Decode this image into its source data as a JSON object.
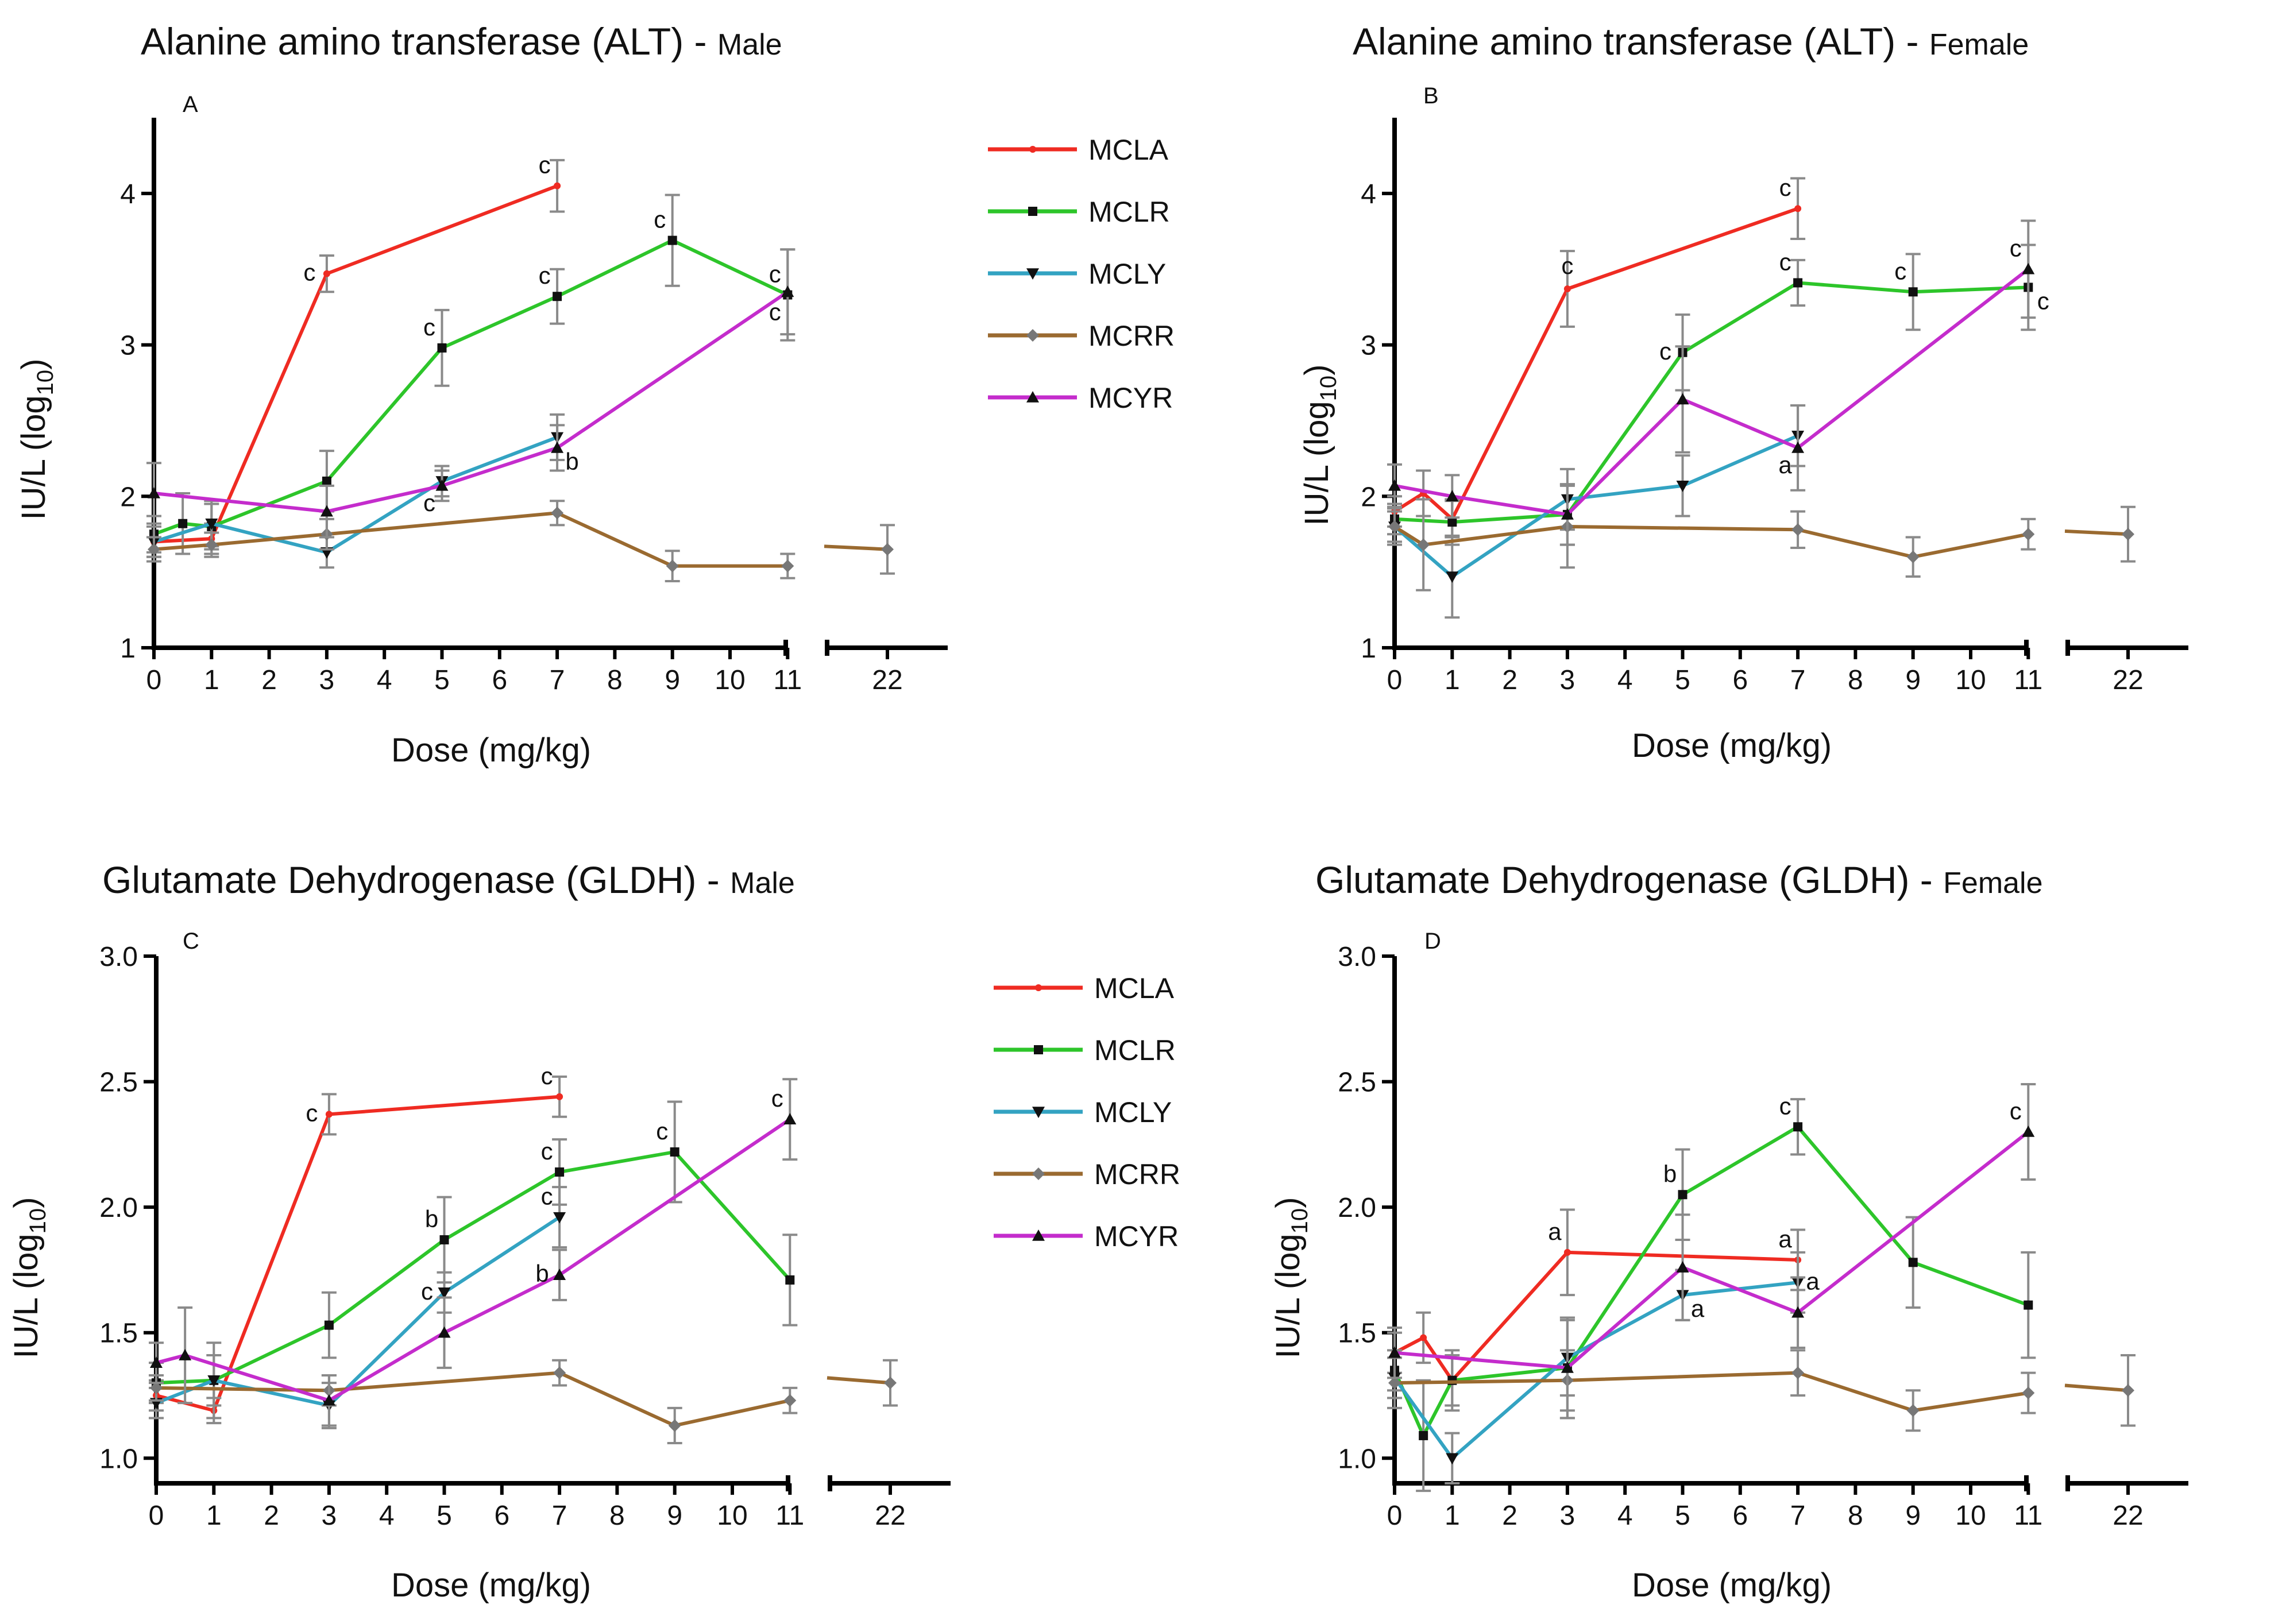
{
  "legend": [
    {
      "name": "MCLA",
      "color": "#ef2b22",
      "marker": "circle"
    },
    {
      "name": "MCLR",
      "color": "#2dc52a",
      "marker": "square"
    },
    {
      "name": "MCLY",
      "color": "#33a3c2",
      "marker": "tri-down"
    },
    {
      "name": "MCRR",
      "color": "#9a6a30",
      "marker": "diamond"
    },
    {
      "name": "MCYR",
      "color": "#c42ccc",
      "marker": "tri-up"
    }
  ],
  "error_bar_color": "#8a8a8a",
  "chart_data": [
    {
      "type": "line",
      "panel": "A",
      "title": "Alanine amino transferase (ALT) -",
      "title_suffix": "Male",
      "xlabel": "Dose (mg/kg)",
      "ylabel_main": "IU/L (log",
      "ylabel_sub": "10",
      "ylabel_end": ")",
      "ylim": [
        1,
        4.5
      ],
      "yticks": [
        "1",
        "2",
        "3",
        "4"
      ],
      "xticks": [
        "0",
        "1",
        "2",
        "3",
        "4",
        "5",
        "6",
        "7",
        "8",
        "9",
        "10",
        "11",
        "22"
      ],
      "series": [
        {
          "name": "MCLA",
          "points": [
            [
              0,
              1.7,
              0.1
            ],
            [
              1,
              1.72,
              0.1
            ],
            [
              3,
              3.47,
              0.12
            ],
            [
              7,
              4.05,
              0.17
            ]
          ]
        },
        {
          "name": "MCLR",
          "points": [
            [
              0,
              1.75,
              0.12
            ],
            [
              0.5,
              1.82,
              0.2
            ],
            [
              1,
              1.8,
              0.15
            ],
            [
              3,
              2.1,
              0.2
            ],
            [
              5,
              2.98,
              0.25
            ],
            [
              7,
              3.32,
              0.18
            ],
            [
              9,
              3.69,
              0.3
            ],
            [
              11,
              3.33,
              0.3
            ]
          ]
        },
        {
          "name": "MCLY",
          "points": [
            [
              0,
              1.7,
              0.1
            ],
            [
              1,
              1.82,
              0.15
            ],
            [
              3,
              1.63,
              0.1
            ],
            [
              5,
              2.1,
              0.1
            ],
            [
              7,
              2.39,
              0.15
            ]
          ]
        },
        {
          "name": "MCRR",
          "points": [
            [
              0,
              1.65,
              0.08
            ],
            [
              1,
              1.68,
              0.08
            ],
            [
              3,
              1.75,
              0.1
            ],
            [
              7,
              1.89,
              0.08
            ],
            [
              9,
              1.54,
              0.1
            ],
            [
              11,
              1.54,
              0.08
            ],
            [
              22,
              1.65,
              0.16
            ]
          ]
        },
        {
          "name": "MCYR",
          "points": [
            [
              0,
              2.02,
              0.2
            ],
            [
              3,
              1.9,
              0.17
            ],
            [
              5,
              2.07,
              0.1
            ],
            [
              7,
              2.32,
              0.15
            ],
            [
              11,
              3.35,
              0.28
            ]
          ]
        }
      ],
      "annotations": [
        {
          "text": "c",
          "x": 3,
          "y": 3.47,
          "pos": "left"
        },
        {
          "text": "c",
          "x": 7,
          "y": 4.05,
          "pos": "above-left"
        },
        {
          "text": "c",
          "x": 5,
          "y": 2.98,
          "pos": "above-left"
        },
        {
          "text": "c",
          "x": 7,
          "y": 3.32,
          "pos": "above-left"
        },
        {
          "text": "c",
          "x": 9,
          "y": 3.69,
          "pos": "above-left"
        },
        {
          "text": "c",
          "x": 11,
          "y": 3.33,
          "pos": "above-left"
        },
        {
          "text": "c",
          "x": 11,
          "y": 3.33,
          "pos": "below-left"
        },
        {
          "text": "c",
          "x": 5,
          "y": 2.07,
          "pos": "below-left"
        },
        {
          "text": "b",
          "x": 7,
          "y": 2.32,
          "pos": "below-right"
        }
      ]
    },
    {
      "type": "line",
      "panel": "B",
      "title": "Alanine amino transferase (ALT) -",
      "title_suffix": "Female",
      "xlabel": "Dose (mg/kg)",
      "ylabel_main": "IU/L (log",
      "ylabel_sub": "10",
      "ylabel_end": ")",
      "ylim": [
        1,
        4.5
      ],
      "yticks": [
        "1",
        "2",
        "3",
        "4"
      ],
      "xticks": [
        "0",
        "1",
        "2",
        "3",
        "4",
        "5",
        "6",
        "7",
        "8",
        "9",
        "10",
        "11",
        "22"
      ],
      "series": [
        {
          "name": "MCLA",
          "points": [
            [
              0,
              1.9,
              0.1
            ],
            [
              0.5,
              2.02,
              0.15
            ],
            [
              1,
              1.85,
              0.12
            ],
            [
              3,
              3.37,
              0.25
            ],
            [
              7,
              3.9,
              0.2
            ]
          ]
        },
        {
          "name": "MCLR",
          "points": [
            [
              0,
              1.85,
              0.1
            ],
            [
              1,
              1.83,
              0.15
            ],
            [
              3,
              1.88,
              0.2
            ],
            [
              5,
              2.95,
              0.25
            ],
            [
              7,
              3.41,
              0.15
            ],
            [
              9,
              3.35,
              0.25
            ],
            [
              11,
              3.38,
              0.28
            ]
          ]
        },
        {
          "name": "MCLY",
          "points": [
            [
              0,
              1.8,
              0.1
            ],
            [
              1,
              1.47,
              0.27
            ],
            [
              3,
              1.98,
              0.2
            ],
            [
              5,
              2.07,
              0.2
            ],
            [
              7,
              2.4,
              0.2
            ]
          ]
        },
        {
          "name": "MCRR",
          "points": [
            [
              0,
              1.8,
              0.12
            ],
            [
              0.5,
              1.68,
              0.3
            ],
            [
              3,
              1.8,
              0.27
            ],
            [
              7,
              1.78,
              0.12
            ],
            [
              9,
              1.6,
              0.13
            ],
            [
              11,
              1.75,
              0.1
            ],
            [
              22,
              1.75,
              0.18
            ]
          ]
        },
        {
          "name": "MCYR",
          "points": [
            [
              0,
              2.07,
              0.14
            ],
            [
              1,
              2.0,
              0.14
            ],
            [
              3,
              1.88,
              0.2
            ],
            [
              5,
              2.64,
              0.35
            ],
            [
              7,
              2.32,
              0.28
            ],
            [
              11,
              3.5,
              0.32
            ]
          ]
        }
      ],
      "annotations": [
        {
          "text": "c",
          "x": 3,
          "y": 3.37,
          "pos": "above"
        },
        {
          "text": "c",
          "x": 7,
          "y": 3.9,
          "pos": "above-left"
        },
        {
          "text": "c",
          "x": 5,
          "y": 2.95,
          "pos": "left"
        },
        {
          "text": "c",
          "x": 7,
          "y": 3.41,
          "pos": "above-left"
        },
        {
          "text": "c",
          "x": 9,
          "y": 3.35,
          "pos": "above-left"
        },
        {
          "text": "c",
          "x": 11,
          "y": 3.5,
          "pos": "above-left"
        },
        {
          "text": "c",
          "x": 11,
          "y": 3.38,
          "pos": "below-right"
        },
        {
          "text": "a",
          "x": 7,
          "y": 2.32,
          "pos": "below-left"
        }
      ]
    },
    {
      "type": "line",
      "panel": "C",
      "title": "Glutamate Dehydrogenase (GLDH) -",
      "title_suffix": "Male",
      "xlabel": "Dose (mg/kg)",
      "ylabel_main": "IU/L (log",
      "ylabel_sub": "10",
      "ylabel_end": ")",
      "ylim": [
        0.9,
        3.0
      ],
      "yticks": [
        "1.0",
        "1.5",
        "2.0",
        "2.5",
        "3.0"
      ],
      "xticks": [
        "0",
        "1",
        "2",
        "3",
        "4",
        "5",
        "6",
        "7",
        "8",
        "9",
        "10",
        "11",
        "22"
      ],
      "series": [
        {
          "name": "MCLA",
          "points": [
            [
              0,
              1.25,
              0.06
            ],
            [
              1,
              1.19,
              0.05
            ],
            [
              3,
              2.37,
              0.08
            ],
            [
              7,
              2.44,
              0.08
            ]
          ]
        },
        {
          "name": "MCLR",
          "points": [
            [
              0,
              1.3,
              0.08
            ],
            [
              1,
              1.31,
              0.15
            ],
            [
              3,
              1.53,
              0.13
            ],
            [
              5,
              1.87,
              0.17
            ],
            [
              7,
              2.14,
              0.13
            ],
            [
              9,
              2.22,
              0.2
            ],
            [
              11,
              1.71,
              0.18
            ]
          ]
        },
        {
          "name": "MCLY",
          "points": [
            [
              0,
              1.22,
              0.06
            ],
            [
              1,
              1.31,
              0.1
            ],
            [
              3,
              1.21,
              0.09
            ],
            [
              5,
              1.66,
              0.08
            ],
            [
              7,
              1.96,
              0.12
            ]
          ]
        },
        {
          "name": "MCRR",
          "points": [
            [
              0,
              1.28,
              0.05
            ],
            [
              3,
              1.27,
              0.06
            ],
            [
              7,
              1.34,
              0.05
            ],
            [
              9,
              1.13,
              0.07
            ],
            [
              11,
              1.23,
              0.05
            ],
            [
              22,
              1.3,
              0.09
            ]
          ]
        },
        {
          "name": "MCYR",
          "points": [
            [
              0,
              1.38,
              0.08
            ],
            [
              0.5,
              1.41,
              0.19
            ],
            [
              3,
              1.23,
              0.1
            ],
            [
              5,
              1.5,
              0.14
            ],
            [
              7,
              1.73,
              0.1
            ],
            [
              11,
              2.35,
              0.16
            ]
          ]
        }
      ],
      "annotations": [
        {
          "text": "c",
          "x": 3,
          "y": 2.37,
          "pos": "left"
        },
        {
          "text": "c",
          "x": 7,
          "y": 2.44,
          "pos": "above-left"
        },
        {
          "text": "b",
          "x": 5,
          "y": 1.87,
          "pos": "above-left"
        },
        {
          "text": "c",
          "x": 7,
          "y": 2.14,
          "pos": "above-left"
        },
        {
          "text": "c",
          "x": 9,
          "y": 2.22,
          "pos": "above-left"
        },
        {
          "text": "c",
          "x": 11,
          "y": 2.35,
          "pos": "above-left"
        },
        {
          "text": "c",
          "x": 5,
          "y": 1.66,
          "pos": "left"
        },
        {
          "text": "c",
          "x": 7,
          "y": 1.96,
          "pos": "above-left"
        },
        {
          "text": "b",
          "x": 7,
          "y": 1.73,
          "pos": "left"
        }
      ]
    },
    {
      "type": "line",
      "panel": "D",
      "title": "Glutamate Dehydrogenase (GLDH) -",
      "title_suffix": "Female",
      "xlabel": "Dose (mg/kg)",
      "ylabel_main": "IU/L (log",
      "ylabel_sub": "10",
      "ylabel_end": ")",
      "ylim": [
        0.9,
        3.0
      ],
      "yticks": [
        "1.0",
        "1.5",
        "2.0",
        "2.5",
        "3.0"
      ],
      "xticks": [
        "0",
        "1",
        "2",
        "3",
        "4",
        "5",
        "6",
        "7",
        "8",
        "9",
        "10",
        "11",
        "22"
      ],
      "series": [
        {
          "name": "MCLA",
          "points": [
            [
              0,
              1.42,
              0.08
            ],
            [
              0.5,
              1.48,
              0.1
            ],
            [
              1,
              1.31,
              0.1
            ],
            [
              3,
              1.82,
              0.17
            ],
            [
              7,
              1.79,
              0.12
            ]
          ]
        },
        {
          "name": "MCLR",
          "points": [
            [
              0,
              1.35,
              0.08
            ],
            [
              0.5,
              1.09,
              0.22
            ],
            [
              1,
              1.31,
              0.12
            ],
            [
              3,
              1.36,
              0.2
            ],
            [
              5,
              2.05,
              0.18
            ],
            [
              7,
              2.32,
              0.11
            ],
            [
              9,
              1.78,
              0.18
            ],
            [
              11,
              1.61,
              0.21
            ]
          ]
        },
        {
          "name": "MCLY",
          "points": [
            [
              0,
              1.32,
              0.08
            ],
            [
              1,
              1.0,
              0.1
            ],
            [
              3,
              1.4,
              0.15
            ],
            [
              5,
              1.65,
              0.1
            ],
            [
              7,
              1.7,
              0.12
            ]
          ]
        },
        {
          "name": "MCRR",
          "points": [
            [
              0,
              1.3,
              0.1
            ],
            [
              3,
              1.31,
              0.12
            ],
            [
              7,
              1.34,
              0.09
            ],
            [
              9,
              1.19,
              0.08
            ],
            [
              11,
              1.26,
              0.08
            ],
            [
              22,
              1.27,
              0.14
            ]
          ]
        },
        {
          "name": "MCYR",
          "points": [
            [
              0,
              1.42,
              0.1
            ],
            [
              3,
              1.36,
              0.2
            ],
            [
              5,
              1.76,
              0.21
            ],
            [
              7,
              1.58,
              0.14
            ],
            [
              11,
              2.3,
              0.19
            ]
          ]
        }
      ],
      "annotations": [
        {
          "text": "a",
          "x": 3,
          "y": 1.82,
          "pos": "above-left"
        },
        {
          "text": "a",
          "x": 7,
          "y": 1.79,
          "pos": "above-left"
        },
        {
          "text": "b",
          "x": 5,
          "y": 2.05,
          "pos": "above-left"
        },
        {
          "text": "c",
          "x": 7,
          "y": 2.32,
          "pos": "above-left"
        },
        {
          "text": "c",
          "x": 11,
          "y": 2.3,
          "pos": "above-left"
        },
        {
          "text": "a",
          "x": 5,
          "y": 1.65,
          "pos": "below-right"
        },
        {
          "text": "a",
          "x": 7,
          "y": 1.7,
          "pos": "right"
        }
      ]
    }
  ]
}
